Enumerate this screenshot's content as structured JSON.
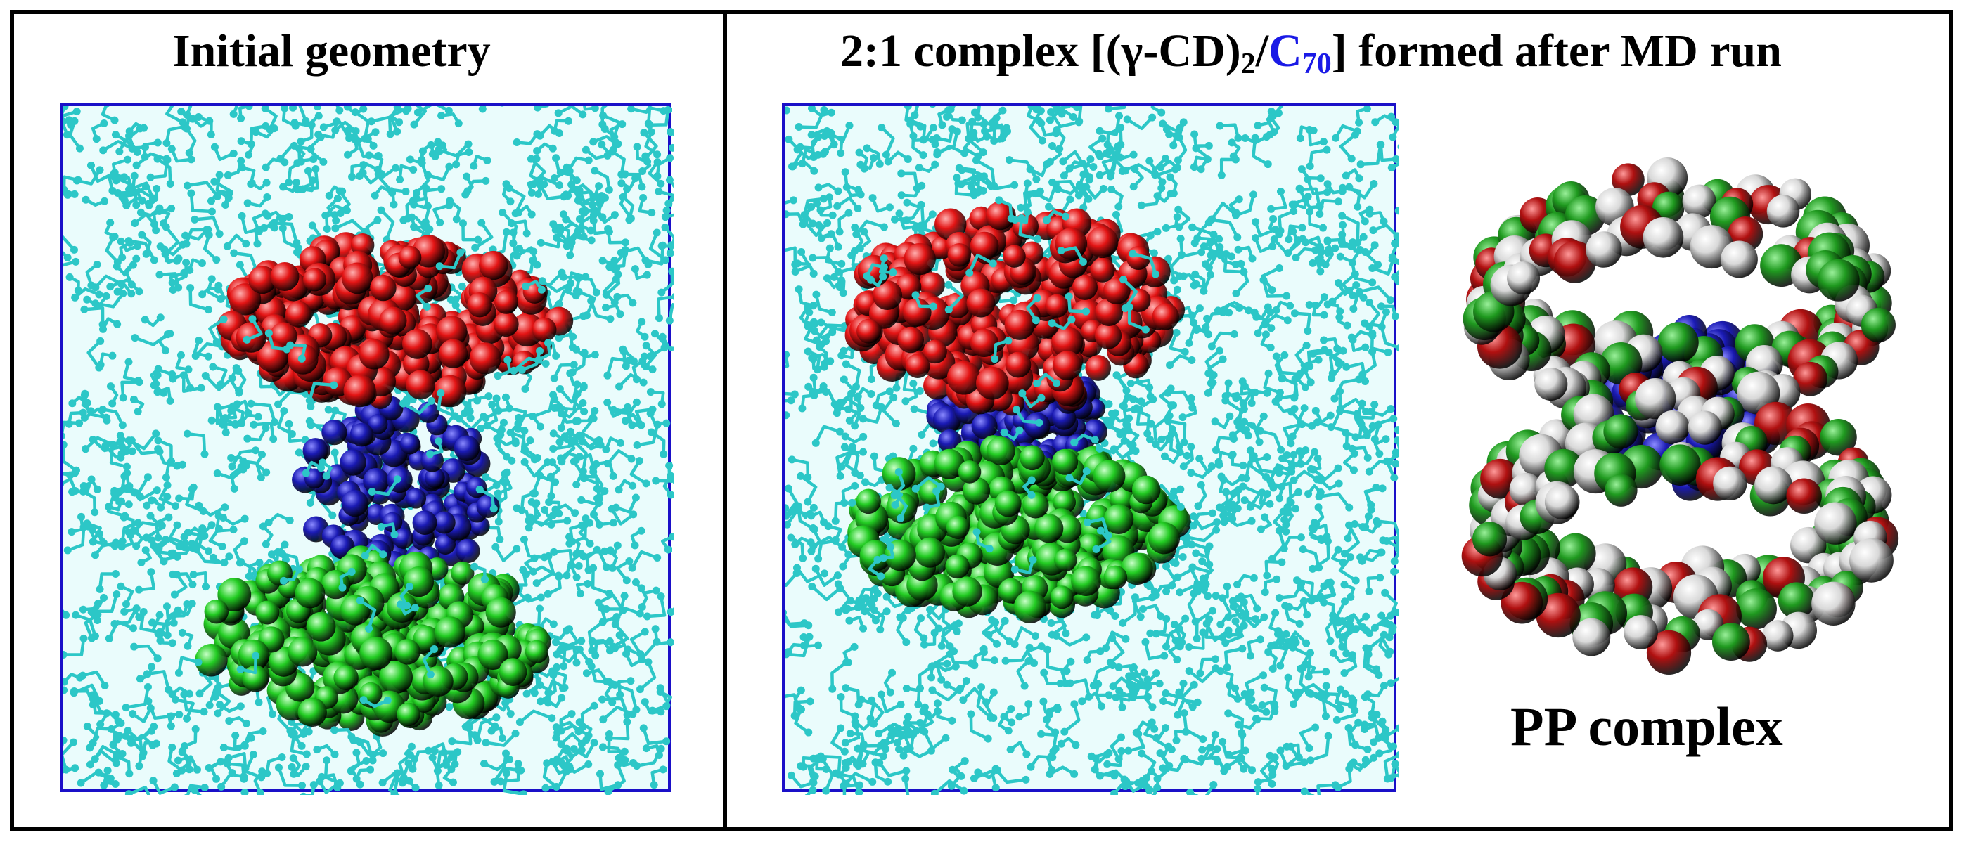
{
  "panels": {
    "left": {
      "title": "Initial geometry"
    },
    "right": {
      "title_prefix": "2:1 complex [(γ-CD)",
      "title_sub2": "2",
      "title_slash": "/",
      "title_c": "C",
      "title_c_sub": "70",
      "title_suffix": "] formed after MD run",
      "inset_label": "PP complex"
    }
  },
  "colors": {
    "water": "#2cc7c7",
    "cd_upper": "#e31414",
    "cd_lower": "#22cc22",
    "fullerene": "#1a1ab4",
    "box_border": "#1a10c8",
    "oxygen": "#b01010",
    "hydrogen": "#d8d8d8",
    "carbon": "#1f9a1f"
  }
}
